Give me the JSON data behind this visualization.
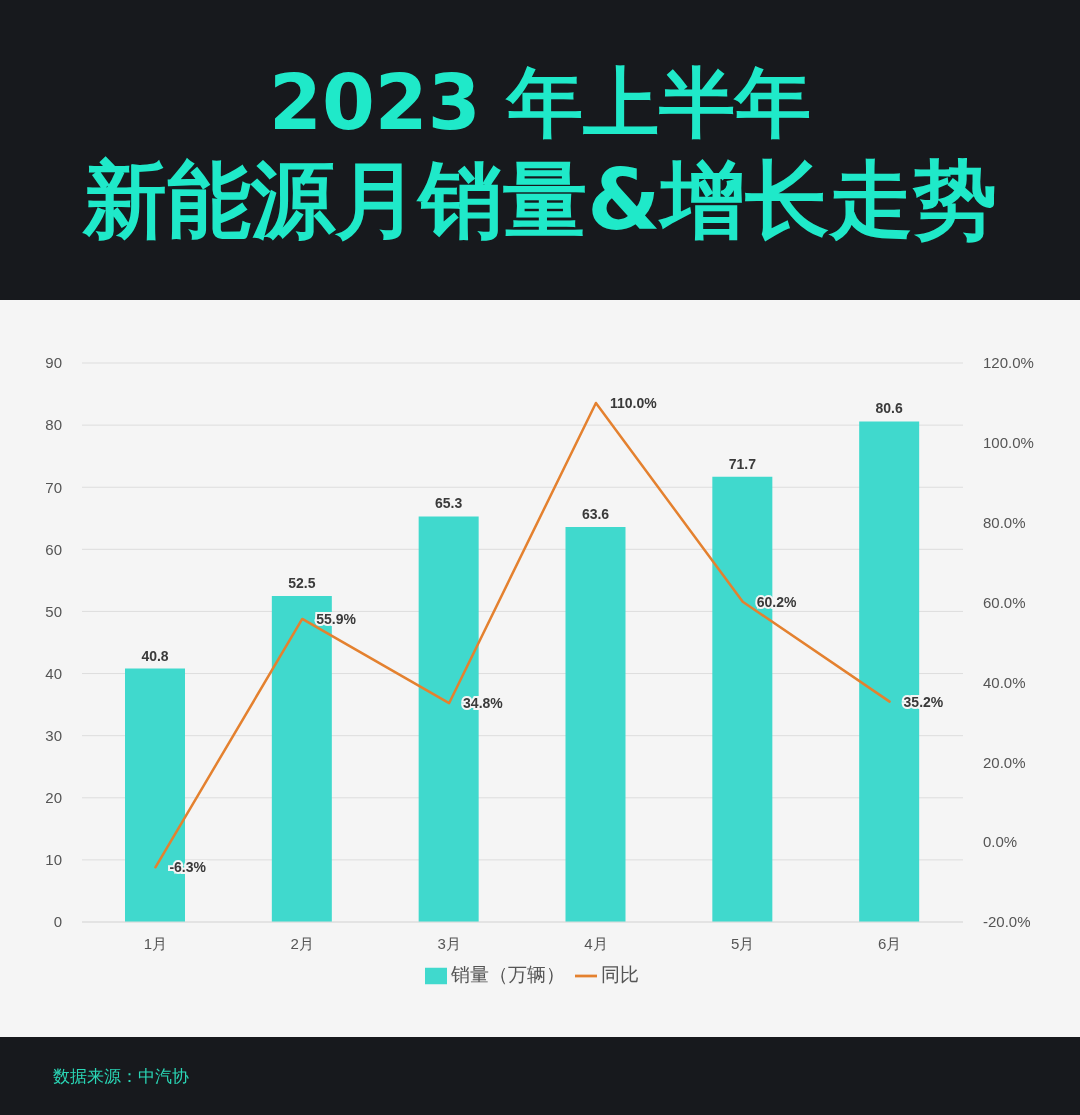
{
  "chart_data": {
    "type": "bar",
    "title": "2023 年上半年",
    "subtitle": "新能源月销量&增长走势",
    "categories": [
      "1月",
      "2月",
      "3月",
      "4月",
      "5月",
      "6月"
    ],
    "series": [
      {
        "name": "销量（万辆）",
        "color": "#40d9cd",
        "values": [
          40.8,
          52.5,
          65.3,
          63.6,
          71.7,
          80.6
        ],
        "value_labels": [
          "40.8",
          "52.5",
          "65.3",
          "63.6",
          "71.7",
          "80.6"
        ]
      },
      {
        "name": "同比",
        "type": "line",
        "axis": "y2",
        "color": "#e4812f",
        "values": [
          -6.3,
          55.9,
          34.8,
          110.0,
          60.2,
          35.2
        ],
        "value_labels": [
          "-6.3%",
          "55.9%",
          "34.8%",
          "110.0%",
          "60.2%",
          "35.2%"
        ]
      }
    ],
    "ylim": [
      0,
      90
    ],
    "yticks": [
      0,
      10,
      20,
      30,
      40,
      50,
      60,
      70,
      80,
      90
    ],
    "y2lim": [
      -20,
      120
    ],
    "y2ticks": [
      {
        "value": -20,
        "label": "-20.0%"
      },
      {
        "value": 0,
        "label": "0.0%"
      },
      {
        "value": 20,
        "label": "20.0%"
      },
      {
        "value": 40,
        "label": "40.0%"
      },
      {
        "value": 60,
        "label": "60.0%"
      },
      {
        "value": 80,
        "label": "80.0%"
      },
      {
        "value": 100,
        "label": "100.0%"
      },
      {
        "value": 120,
        "label": "120.0%"
      }
    ],
    "grid": "y",
    "legend": "bottom",
    "marker": "none",
    "line_style": "solid",
    "annotations": [
      "数据来源：中汽协"
    ]
  }
}
